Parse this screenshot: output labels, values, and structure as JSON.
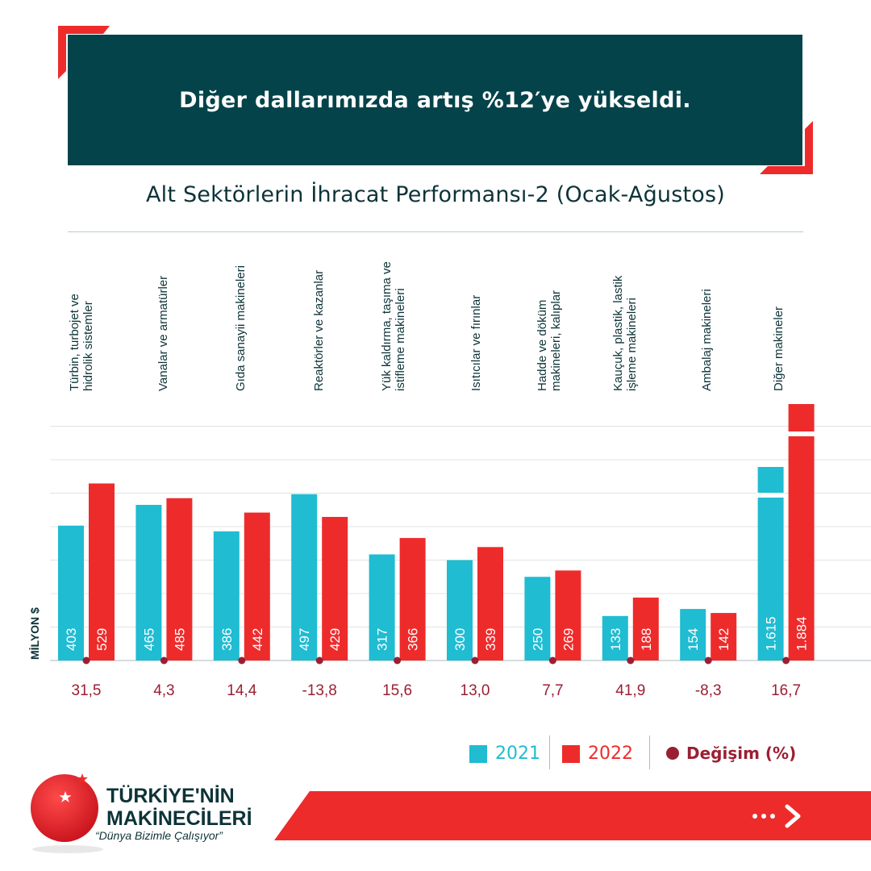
{
  "header": {
    "title": "Diğer dallarımızda artış %12′ye yükseldi."
  },
  "chart_data": {
    "type": "bar",
    "title": "Alt Sektörlerin İhracat Performansı-2 (Ocak-Ağustos)",
    "ylabel": "MİLYON $",
    "categories": [
      "Türbin, turbojet ve\nhidrolik sistemler",
      "Vanalar  ve armatürler",
      "Gıda sanayii makineleri",
      "Reaktörler ve kazanlar",
      "Yük kaldırma, taşıma ve\nistifleme makineleri",
      "Isıtıcılar ve fırınlar",
      "Hadde ve döküm\nmakineleri, kalıplar",
      "Kauçuk, plastik, lastik\nişleme makineleri",
      "Ambalaj makineleri",
      "Diğer makineler"
    ],
    "series": [
      {
        "name": "2021",
        "values": [
          403,
          465,
          386,
          497,
          317,
          300,
          250,
          133,
          154,
          1615
        ],
        "labels": [
          "403",
          "465",
          "386",
          "497",
          "317",
          "300",
          "250",
          "133",
          "154",
          "1.615"
        ]
      },
      {
        "name": "2022",
        "values": [
          529,
          485,
          442,
          429,
          366,
          339,
          269,
          188,
          142,
          1884
        ],
        "labels": [
          "529",
          "485",
          "442",
          "429",
          "366",
          "339",
          "269",
          "188",
          "142",
          "1.884"
        ]
      }
    ],
    "change": {
      "name": "Değişim (%)",
      "values": [
        31.5,
        4.3,
        14.4,
        -13.8,
        15.6,
        13.0,
        7.7,
        41.9,
        -8.3,
        16.7
      ],
      "labels": [
        "31,5",
        "4,3",
        "14,4",
        "-13,8",
        "15,6",
        "13,0",
        "7,7",
        "41,9",
        "-8,3",
        "16,7"
      ]
    },
    "axis_break": true,
    "legend_position": "bottom-right",
    "grid": true
  },
  "colors": {
    "banner": "#04434a",
    "series_2021": "#1fbcd2",
    "series_2022": "#ee2b2b",
    "change": "#9b1f33",
    "text": "#0d3338"
  },
  "brand": {
    "name_line1": "TÜRKİYE'NİN",
    "name_line2": "MAKİNECİLERİ",
    "tagline": "“Dünya Bizimle Çalışıyor”"
  },
  "nav": {
    "next_icon": "dots-chevron-right-icon"
  }
}
